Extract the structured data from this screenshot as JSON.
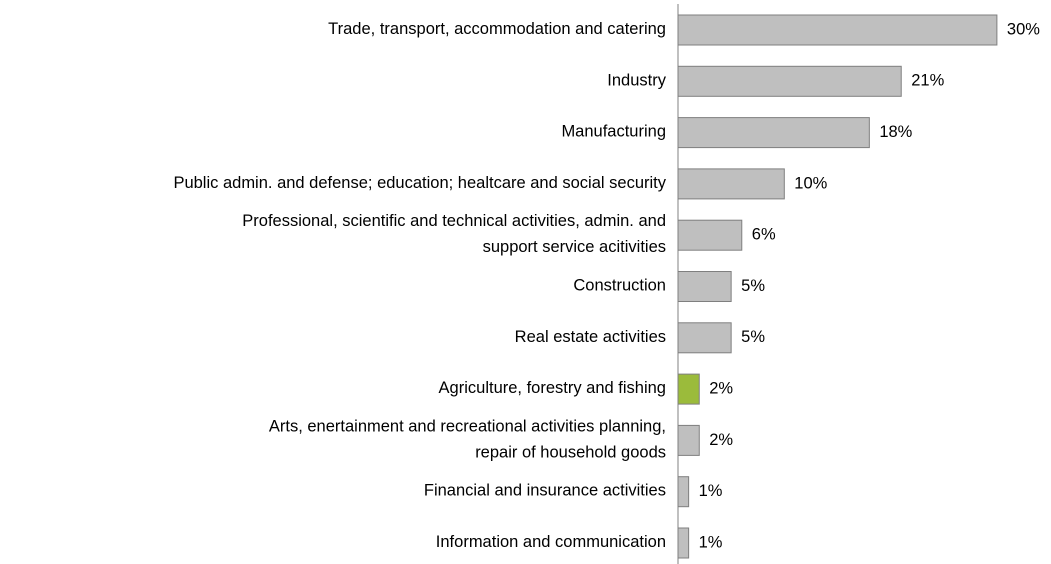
{
  "chart_data": {
    "type": "barh",
    "categories": [
      "Trade, transport, accommodation and catering",
      "Industry",
      "Manufacturing",
      "Public admin. and defense; education; healtcare and social security",
      "Professional, scientific and technical activities, admin. and\nsupport service acitivities",
      "Construction",
      "Real estate activities",
      "Agriculture, forestry and fishing",
      "Arts, enertainment and recreational activities planning,\nrepair of household goods",
      "Financial and insurance activities",
      "Information and communication"
    ],
    "values": [
      30,
      21,
      18,
      10,
      6,
      5,
      5,
      2,
      2,
      1,
      1
    ],
    "value_labels": [
      "30%",
      "21%",
      "18%",
      "10%",
      "6%",
      "5%",
      "5%",
      "2%",
      "2%",
      "1%",
      "1%"
    ],
    "colors": [
      "#bfbfbf",
      "#bfbfbf",
      "#bfbfbf",
      "#bfbfbf",
      "#bfbfbf",
      "#bfbfbf",
      "#bfbfbf",
      "#9bbb3b",
      "#bfbfbf",
      "#bfbfbf",
      "#bfbfbf"
    ]
  }
}
